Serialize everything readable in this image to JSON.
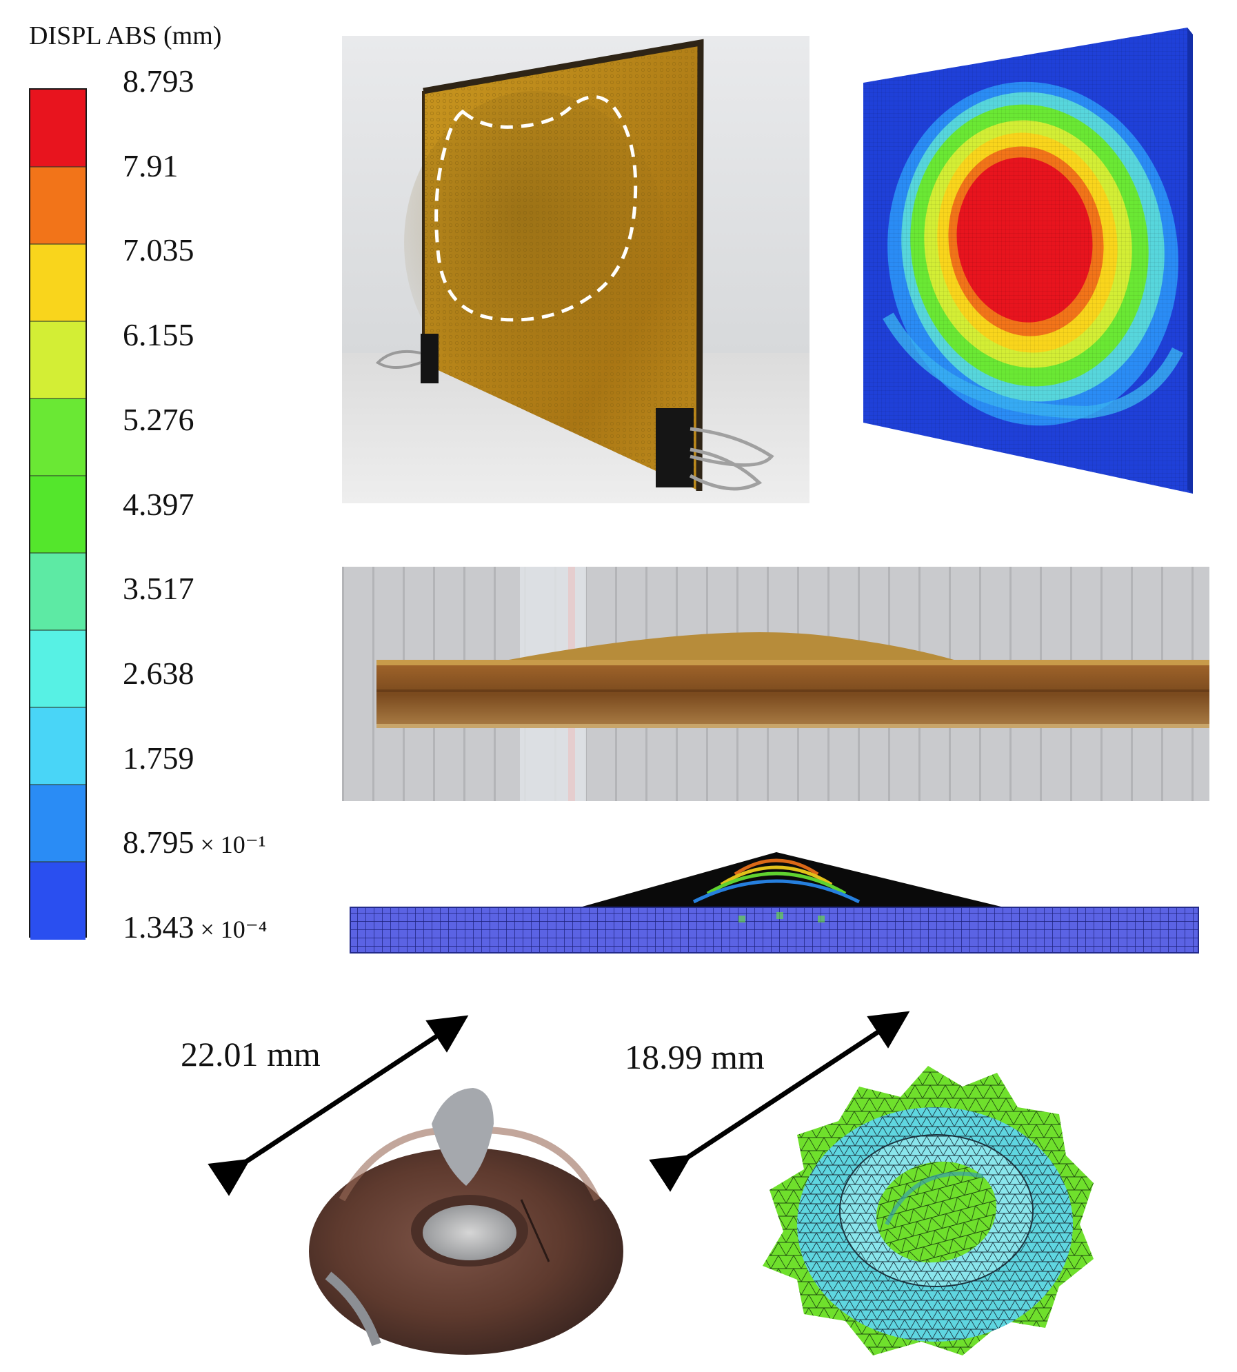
{
  "legend": {
    "title": "DISPL ABS (mm)",
    "colors": [
      "#e8141e",
      "#f27419",
      "#f9d51c",
      "#d3ee35",
      "#6ae834",
      "#54e62c",
      "#5deaa4",
      "#57f1e4",
      "#49d5f7",
      "#2a8cf5",
      "#2a4ff0"
    ],
    "ticks": [
      {
        "mantissa": "8.793",
        "exp": ""
      },
      {
        "mantissa": "7.91",
        "exp": ""
      },
      {
        "mantissa": "7.035",
        "exp": ""
      },
      {
        "mantissa": "6.155",
        "exp": ""
      },
      {
        "mantissa": "5.276",
        "exp": ""
      },
      {
        "mantissa": "4.397",
        "exp": ""
      },
      {
        "mantissa": "3.517",
        "exp": ""
      },
      {
        "mantissa": "2.638",
        "exp": ""
      },
      {
        "mantissa": "1.759",
        "exp": ""
      },
      {
        "mantissa": "8.795",
        "exp": " × 10⁻¹"
      },
      {
        "mantissa": "1.343",
        "exp": " × 10⁻⁴"
      }
    ]
  },
  "dimensions": {
    "experiment": "22.01 mm",
    "simulation": "18.99 mm"
  }
}
